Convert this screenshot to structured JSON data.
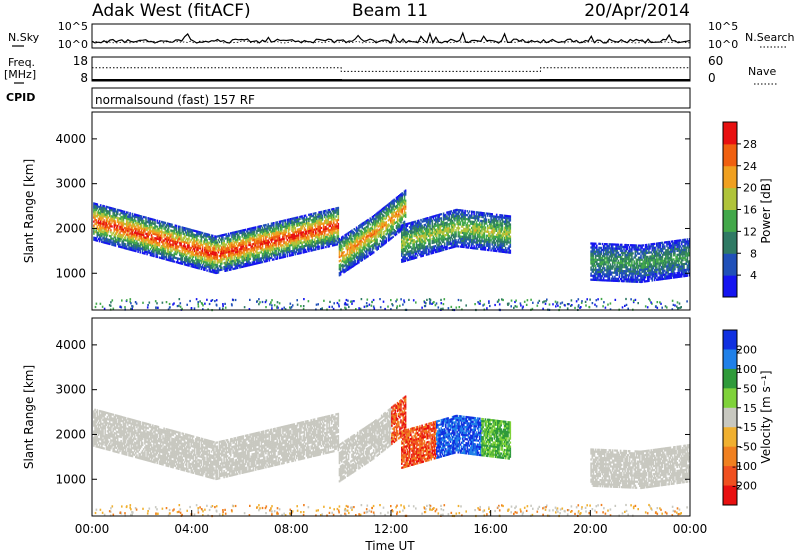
{
  "header": {
    "station": "Adak West (fitACF)",
    "beam": "Beam 11",
    "date": "20/Apr/2014"
  },
  "chart_data": [
    {
      "type": "line",
      "panel": "noise",
      "left_label": "N.Sky",
      "right_label": "N.Search",
      "left_ticks": [
        "10^5",
        "10^0"
      ],
      "right_ticks": [
        "10^5",
        "10^0"
      ],
      "scale": "log",
      "series": [
        {
          "name": "N.Sky",
          "style": "solid"
        },
        {
          "name": "N.Search",
          "style": "dotted"
        }
      ]
    },
    {
      "type": "line",
      "panel": "frequency",
      "left_label": "Freq.",
      "left_unit": "[MHz]",
      "left_ticks": [
        "18",
        "8"
      ],
      "right_label": "Nave",
      "right_ticks": [
        "60",
        "0"
      ],
      "x_hours": [
        0,
        10,
        10,
        18,
        18,
        24
      ],
      "freq_mhz": [
        11,
        11,
        9.5,
        9.5,
        11,
        11
      ],
      "nave": [
        33,
        33,
        24,
        24,
        33,
        33
      ],
      "series": [
        {
          "name": "Freq.",
          "style": "solid"
        },
        {
          "name": "Nave",
          "style": "dotted"
        }
      ]
    },
    {
      "type": "text",
      "panel": "cpid",
      "label": "CPID",
      "text": "normalsound (fast) 157 RF"
    },
    {
      "type": "heatmap",
      "panel": "power",
      "ylabel": "Slant Range [km]",
      "ylim": [
        180,
        4600
      ],
      "yticks": [
        1000,
        2000,
        3000,
        4000
      ],
      "colorbar": {
        "label": "Power [dB]",
        "ticks": [
          "4",
          "8",
          "12",
          "16",
          "20",
          "24",
          "28"
        ],
        "colors": [
          "#1515f0",
          "#2050b8",
          "#2f7a64",
          "#42a84a",
          "#b0c43a",
          "#f0a020",
          "#f06010",
          "#e81010"
        ]
      },
      "echo_bands": [
        {
          "x_start": 0.0,
          "x_end": 9.9,
          "range_start": 2200,
          "range_mid": 1450,
          "range_end": 2100,
          "peak_db": 30
        },
        {
          "x_start": 9.9,
          "x_end": 12.6,
          "range_start": 1400,
          "range_mid": 1900,
          "range_end": 2500,
          "peak_db": 24
        },
        {
          "x_start": 12.4,
          "x_end": 16.8,
          "range_start": 1700,
          "range_mid": 2050,
          "range_end": 1900,
          "peak_db": 18
        },
        {
          "x_start": 20.0,
          "x_end": 24.0,
          "range_start": 1300,
          "range_mid": 1250,
          "range_end": 1400,
          "peak_db": 12
        }
      ]
    },
    {
      "type": "heatmap",
      "panel": "velocity",
      "xlabel": "Time UT",
      "ylabel": "Slant Range [km]",
      "ylim": [
        180,
        4600
      ],
      "yticks": [
        1000,
        2000,
        3000,
        4000
      ],
      "xlim": [
        0,
        24
      ],
      "xtick_labels": [
        "00:00",
        "04:00",
        "08:00",
        "12:00",
        "16:00",
        "20:00",
        "00:00"
      ],
      "colorbar": {
        "label": "Velocity [m s⁻¹]",
        "ticks": [
          "200",
          "100",
          "50",
          "15",
          "-15",
          "-50",
          "-100",
          "-200"
        ],
        "colors": [
          "#1030e0",
          "#2080e8",
          "#2f9a3a",
          "#7fd23a",
          "#c8c8c0",
          "#f0b030",
          "#f08020",
          "#f05020",
          "#e81010"
        ]
      },
      "echo_bands": [
        {
          "x_start": 0.0,
          "x_end": 9.9,
          "velocity": "ground scatter (-15 to 15)"
        },
        {
          "x_start": 12.0,
          "x_end": 13.8,
          "velocity": "-100 to -200"
        },
        {
          "x_start": 13.8,
          "x_end": 15.6,
          "velocity": "100 to 200"
        },
        {
          "x_start": 15.6,
          "x_end": 16.8,
          "velocity": "15 to 50"
        },
        {
          "x_start": 20.0,
          "x_end": 24.0,
          "velocity": "ground scatter (-15 to 15)"
        }
      ]
    }
  ]
}
